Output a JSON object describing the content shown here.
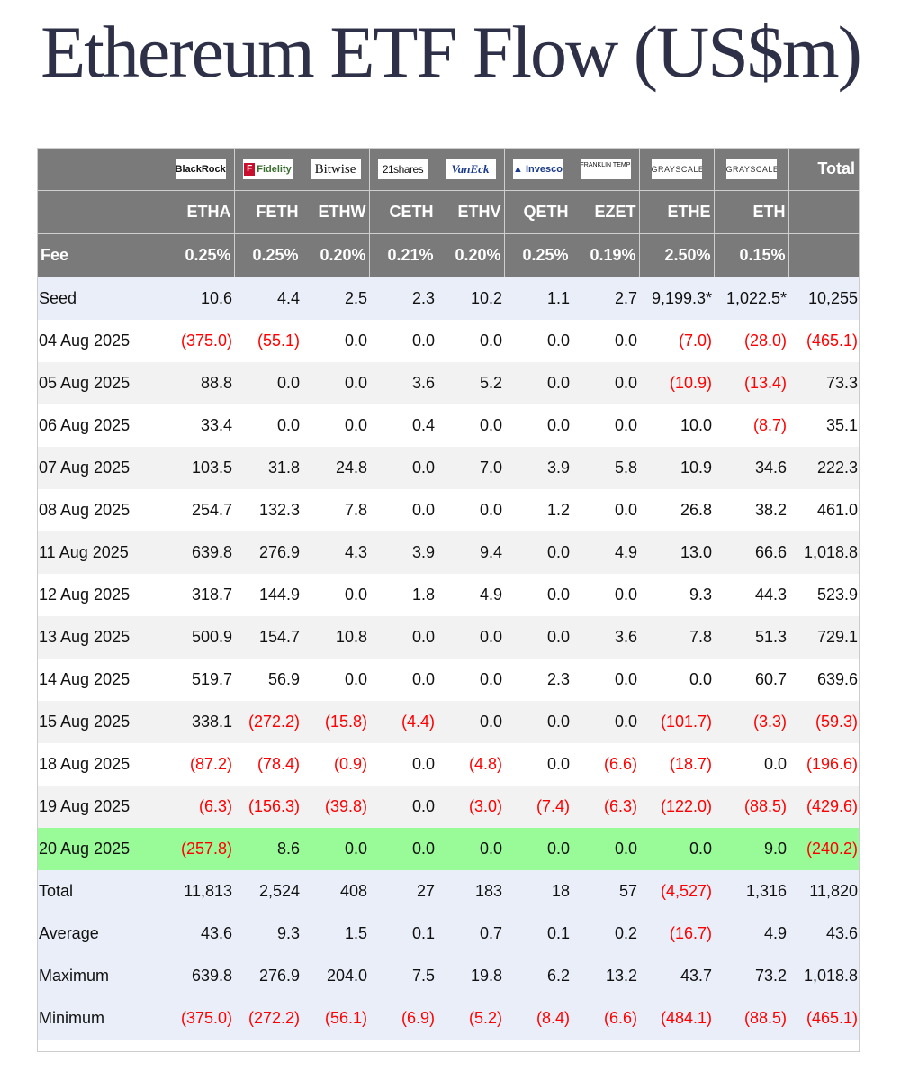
{
  "title": "Ethereum ETF Flow (US$m)",
  "colors": {
    "header_bg": "#7a7a7a",
    "negative": "#ff0000",
    "highlight": "#98fb98",
    "summary_bg": "#eaeef8",
    "title": "#2d3047"
  },
  "header": {
    "logos": [
      "BlackRock",
      "Fidelity",
      "Bitwise",
      "21shares",
      "VanEck",
      "Invesco",
      "FRANKLIN TEMPLETON",
      "GRAYSCALE",
      "GRAYSCALE"
    ],
    "total_label": "Total",
    "tickers": [
      "ETHA",
      "FETH",
      "ETHW",
      "CETH",
      "ETHV",
      "QETH",
      "EZET",
      "ETHE",
      "ETH"
    ],
    "fee_label": "Fee",
    "fees": [
      "0.25%",
      "0.25%",
      "0.20%",
      "0.21%",
      "0.20%",
      "0.25%",
      "0.19%",
      "2.50%",
      "0.15%"
    ]
  },
  "rows": [
    {
      "label": "Seed",
      "values": [
        "10.6",
        "4.4",
        "2.5",
        "2.3",
        "10.2",
        "1.1",
        "2.7",
        "9,199.3*",
        "1,022.5*",
        "10,255"
      ]
    },
    {
      "label": "04 Aug 2025",
      "values": [
        "(375.0)",
        "(55.1)",
        "0.0",
        "0.0",
        "0.0",
        "0.0",
        "0.0",
        "(7.0)",
        "(28.0)",
        "(465.1)"
      ]
    },
    {
      "label": "05 Aug 2025",
      "values": [
        "88.8",
        "0.0",
        "0.0",
        "3.6",
        "5.2",
        "0.0",
        "0.0",
        "(10.9)",
        "(13.4)",
        "73.3"
      ]
    },
    {
      "label": "06 Aug 2025",
      "values": [
        "33.4",
        "0.0",
        "0.0",
        "0.4",
        "0.0",
        "0.0",
        "0.0",
        "10.0",
        "(8.7)",
        "35.1"
      ]
    },
    {
      "label": "07 Aug 2025",
      "values": [
        "103.5",
        "31.8",
        "24.8",
        "0.0",
        "7.0",
        "3.9",
        "5.8",
        "10.9",
        "34.6",
        "222.3"
      ]
    },
    {
      "label": "08 Aug 2025",
      "values": [
        "254.7",
        "132.3",
        "7.8",
        "0.0",
        "0.0",
        "1.2",
        "0.0",
        "26.8",
        "38.2",
        "461.0"
      ]
    },
    {
      "label": "11 Aug 2025",
      "values": [
        "639.8",
        "276.9",
        "4.3",
        "3.9",
        "9.4",
        "0.0",
        "4.9",
        "13.0",
        "66.6",
        "1,018.8"
      ]
    },
    {
      "label": "12 Aug 2025",
      "values": [
        "318.7",
        "144.9",
        "0.0",
        "1.8",
        "4.9",
        "0.0",
        "0.0",
        "9.3",
        "44.3",
        "523.9"
      ]
    },
    {
      "label": "13 Aug 2025",
      "values": [
        "500.9",
        "154.7",
        "10.8",
        "0.0",
        "0.0",
        "0.0",
        "3.6",
        "7.8",
        "51.3",
        "729.1"
      ]
    },
    {
      "label": "14 Aug 2025",
      "values": [
        "519.7",
        "56.9",
        "0.0",
        "0.0",
        "0.0",
        "2.3",
        "0.0",
        "0.0",
        "60.7",
        "639.6"
      ]
    },
    {
      "label": "15 Aug 2025",
      "values": [
        "338.1",
        "(272.2)",
        "(15.8)",
        "(4.4)",
        "0.0",
        "0.0",
        "0.0",
        "(101.7)",
        "(3.3)",
        "(59.3)"
      ]
    },
    {
      "label": "18 Aug 2025",
      "values": [
        "(87.2)",
        "(78.4)",
        "(0.9)",
        "0.0",
        "(4.8)",
        "0.0",
        "(6.6)",
        "(18.7)",
        "0.0",
        "(196.6)"
      ]
    },
    {
      "label": "19 Aug 2025",
      "values": [
        "(6.3)",
        "(156.3)",
        "(39.8)",
        "0.0",
        "(3.0)",
        "(7.4)",
        "(6.3)",
        "(122.0)",
        "(88.5)",
        "(429.6)"
      ]
    },
    {
      "label": "20 Aug 2025",
      "values": [
        "(257.8)",
        "8.6",
        "0.0",
        "0.0",
        "0.0",
        "0.0",
        "0.0",
        "0.0",
        "9.0",
        "(240.2)"
      ]
    },
    {
      "label": "Total",
      "values": [
        "11,813",
        "2,524",
        "408",
        "27",
        "183",
        "18",
        "57",
        "(4,527)",
        "1,316",
        "11,820"
      ]
    },
    {
      "label": "Average",
      "values": [
        "43.6",
        "9.3",
        "1.5",
        "0.1",
        "0.7",
        "0.1",
        "0.2",
        "(16.7)",
        "4.9",
        "43.6"
      ]
    },
    {
      "label": "Maximum",
      "values": [
        "639.8",
        "276.9",
        "204.0",
        "7.5",
        "19.8",
        "6.2",
        "13.2",
        "43.7",
        "73.2",
        "1,018.8"
      ]
    },
    {
      "label": "Minimum",
      "values": [
        "(375.0)",
        "(272.2)",
        "(56.1)",
        "(6.9)",
        "(5.2)",
        "(8.4)",
        "(6.6)",
        "(484.1)",
        "(88.5)",
        "(465.1)"
      ]
    }
  ]
}
